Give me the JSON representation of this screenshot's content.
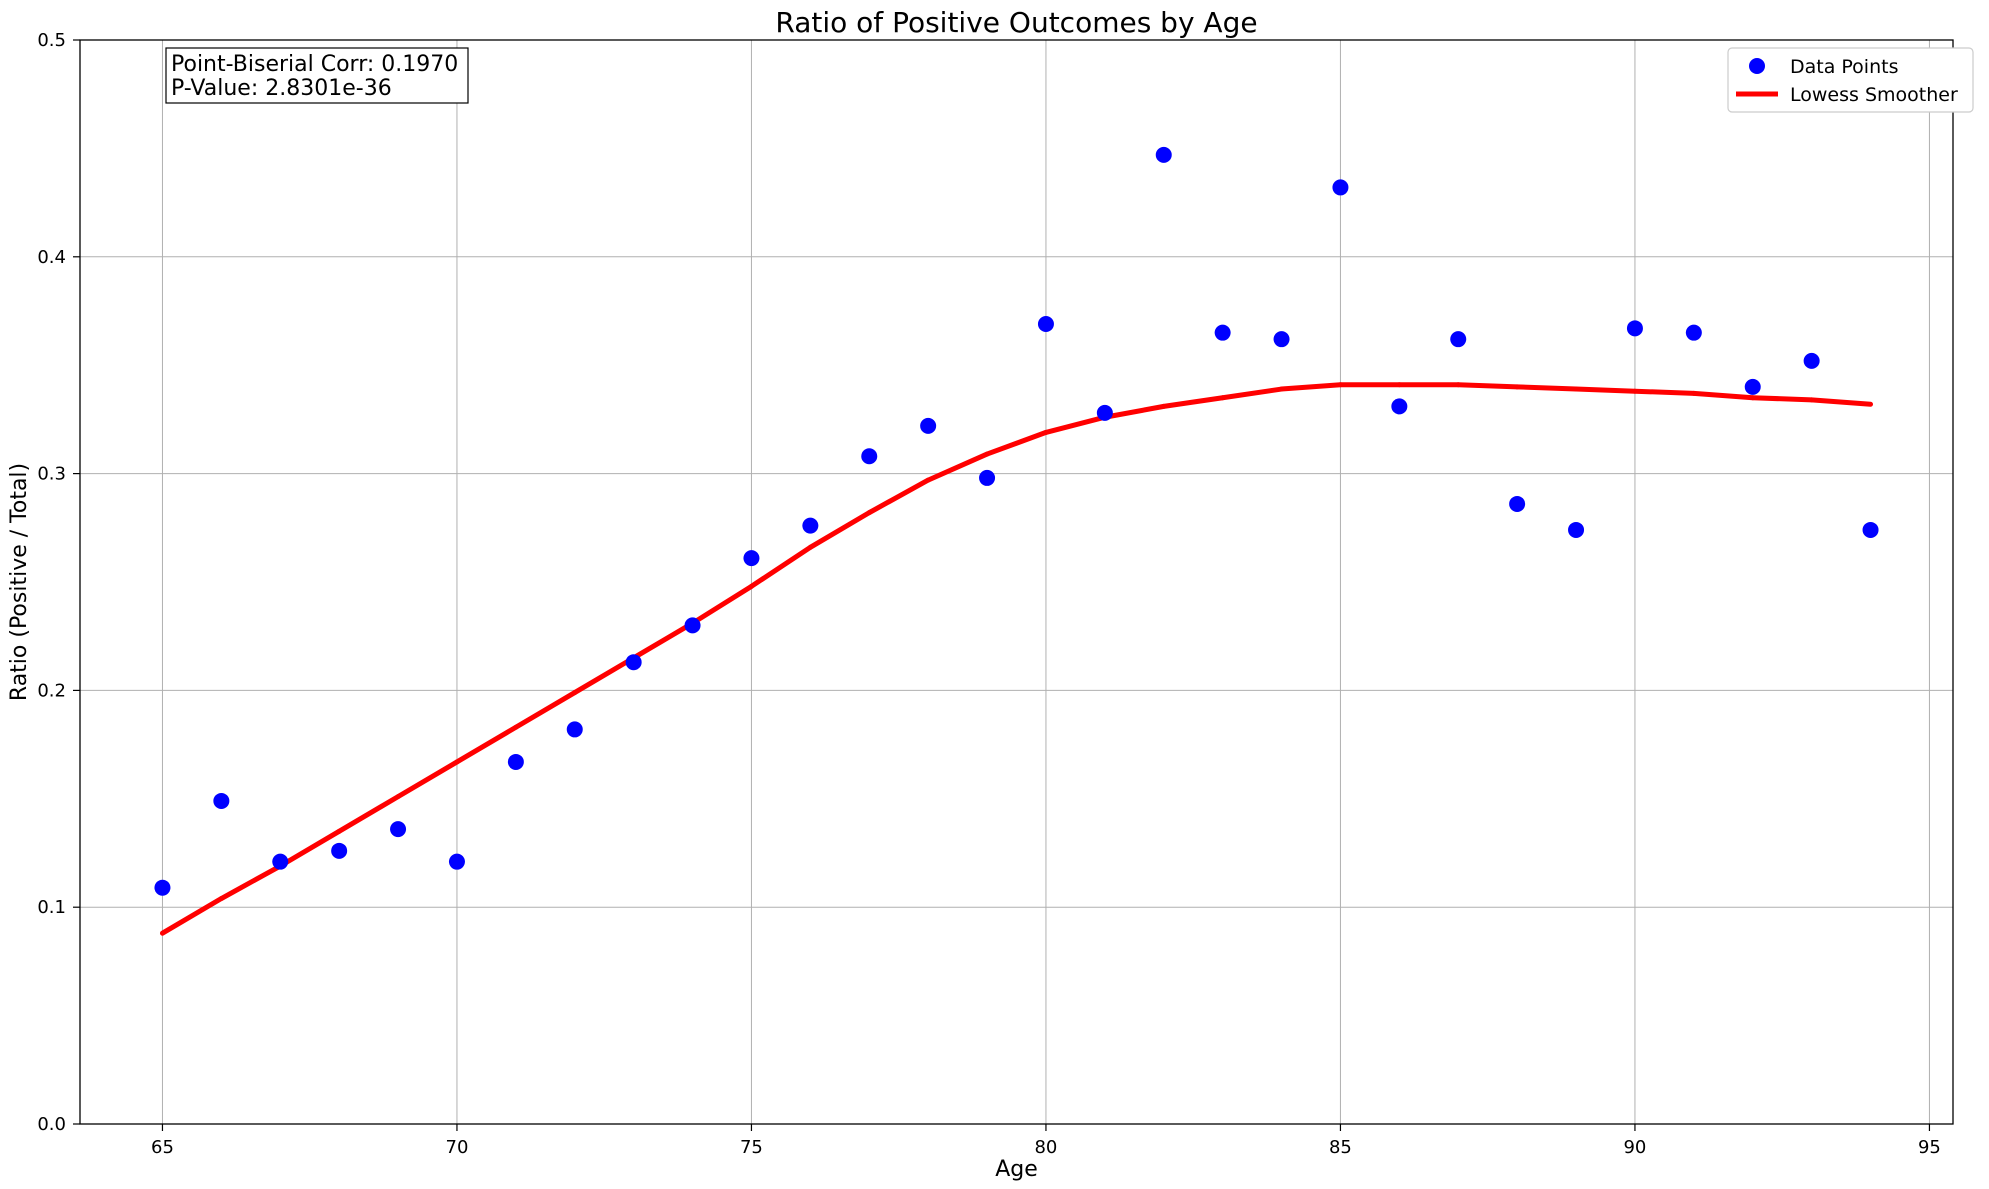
{
  "chart_data": {
    "type": "scatter",
    "title": "Ratio of Positive Outcomes by Age",
    "xlabel": "Age",
    "ylabel": "Ratio (Positive / Total)",
    "xlim": [
      63.6,
      95.4
    ],
    "ylim": [
      0.0,
      0.5
    ],
    "x_ticks": [
      65,
      70,
      75,
      80,
      85,
      90,
      95
    ],
    "y_ticks": [
      0.0,
      0.1,
      0.2,
      0.3,
      0.4,
      0.5
    ],
    "y_tick_labels": [
      "0.0",
      "0.1",
      "0.2",
      "0.3",
      "0.4",
      "0.5"
    ],
    "grid": true,
    "legend_position": "top-right",
    "annotation": {
      "line1": "Point-Biserial Corr: 0.1970",
      "line2": "P-Value: 2.8301e-36"
    },
    "series": [
      {
        "name": "Data Points",
        "kind": "scatter",
        "color": "#0000ff",
        "x": [
          65,
          66,
          67,
          68,
          69,
          70,
          71,
          72,
          73,
          74,
          75,
          76,
          77,
          78,
          79,
          80,
          81,
          82,
          83,
          84,
          85,
          86,
          87,
          88,
          89,
          90,
          91,
          92,
          93,
          94
        ],
        "y": [
          0.109,
          0.149,
          0.121,
          0.126,
          0.136,
          0.121,
          0.167,
          0.182,
          0.213,
          0.23,
          0.261,
          0.276,
          0.308,
          0.322,
          0.298,
          0.369,
          0.328,
          0.447,
          0.365,
          0.362,
          0.432,
          0.331,
          0.362,
          0.286,
          0.274,
          0.367,
          0.365,
          0.34,
          0.352,
          0.274
        ]
      },
      {
        "name": "Lowess Smoother",
        "kind": "line",
        "color": "#ff0000",
        "x": [
          65,
          66,
          67,
          68,
          69,
          70,
          71,
          72,
          73,
          74,
          75,
          76,
          77,
          78,
          79,
          80,
          81,
          82,
          83,
          84,
          85,
          86,
          87,
          88,
          89,
          90,
          91,
          92,
          93,
          94
        ],
        "y": [
          0.088,
          0.104,
          0.119,
          0.135,
          0.151,
          0.167,
          0.183,
          0.199,
          0.215,
          0.231,
          0.248,
          0.266,
          0.282,
          0.297,
          0.309,
          0.319,
          0.326,
          0.331,
          0.335,
          0.339,
          0.341,
          0.341,
          0.341,
          0.34,
          0.339,
          0.338,
          0.337,
          0.335,
          0.334,
          0.332
        ]
      }
    ]
  }
}
